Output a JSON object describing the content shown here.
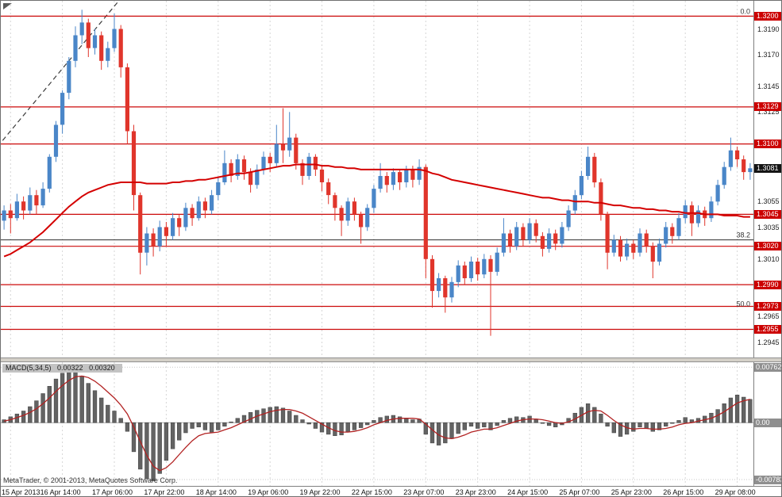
{
  "footer": {
    "copyright": "MetaTrader, © 2001-2013, MetaQuotes Software Corp."
  },
  "chart_data": {
    "type": "candlestick",
    "ylim": [
      1.2933,
      1.3212
    ],
    "price_ticks": [
      1.319,
      1.317,
      1.3145,
      1.3125,
      1.31,
      1.308,
      1.3055,
      1.3035,
      1.301,
      1.299,
      1.2965,
      1.2945
    ],
    "current_price": "1.3081",
    "levels": [
      {
        "price": 1.32,
        "label": "1.3200"
      },
      {
        "price": 1.3129,
        "label": "1.3129"
      },
      {
        "price": 1.31,
        "label": "1.3100"
      },
      {
        "price": 1.3045,
        "label": "1.3045"
      },
      {
        "price": 1.302,
        "label": "1.3020"
      },
      {
        "price": 1.299,
        "label": "1.2990"
      },
      {
        "price": 1.2973,
        "label": "1.2973"
      },
      {
        "price": 1.2955,
        "label": "1.2955"
      }
    ],
    "fib_levels": [
      {
        "label": "0.0",
        "price": 1.32,
        "line": false
      },
      {
        "label": "38.2",
        "price": 1.3025,
        "line": true
      },
      {
        "label": "50.0",
        "price": 1.2971,
        "line": false
      }
    ],
    "trendline": {
      "from_index": -1,
      "from_price": 1.3098,
      "to_index": 19,
      "to_price": 1.322
    },
    "time_labels": [
      "15 Apr 2013",
      "16 Apr 14:00",
      "17 Apr 06:00",
      "17 Apr 22:00",
      "18 Apr 14:00",
      "19 Apr 06:00",
      "19 Apr 22:00",
      "22 Apr 15:00",
      "23 Apr 07:00",
      "23 Apr 23:00",
      "24 Apr 15:00",
      "25 Apr 07:00",
      "25 Apr 23:00",
      "26 Apr 15:00",
      "29 Apr 08:00"
    ],
    "time_label_indices": [
      1,
      9,
      17,
      25,
      33,
      41,
      49,
      57,
      65,
      73,
      81,
      89,
      97,
      105,
      113
    ],
    "candles": [
      [
        1.304,
        1.3052,
        1.3033,
        1.3048
      ],
      [
        1.3048,
        1.3053,
        1.303,
        1.3042
      ],
      [
        1.3042,
        1.3061,
        1.304,
        1.3055
      ],
      [
        1.3055,
        1.3059,
        1.3041,
        1.3048
      ],
      [
        1.3048,
        1.3066,
        1.3045,
        1.306
      ],
      [
        1.306,
        1.3064,
        1.3045,
        1.3052
      ],
      [
        1.3052,
        1.307,
        1.305,
        1.3065
      ],
      [
        1.3065,
        1.3092,
        1.3062,
        1.309
      ],
      [
        1.309,
        1.3118,
        1.3086,
        1.3115
      ],
      [
        1.3115,
        1.3142,
        1.3108,
        1.314
      ],
      [
        1.314,
        1.3168,
        1.3135,
        1.3165
      ],
      [
        1.3165,
        1.3192,
        1.316,
        1.3185
      ],
      [
        1.3185,
        1.3205,
        1.3178,
        1.3195
      ],
      [
        1.3195,
        1.3198,
        1.3168,
        1.3175
      ],
      [
        1.3175,
        1.319,
        1.317,
        1.3185
      ],
      [
        1.3185,
        1.3188,
        1.3158,
        1.3165
      ],
      [
        1.3165,
        1.318,
        1.316,
        1.3175
      ],
      [
        1.3175,
        1.3202,
        1.3172,
        1.319
      ],
      [
        1.319,
        1.3193,
        1.3152,
        1.316
      ],
      [
        1.316,
        1.3163,
        1.31,
        1.311
      ],
      [
        1.311,
        1.3115,
        1.3048,
        1.306
      ],
      [
        1.306,
        1.3062,
        1.2998,
        1.3015
      ],
      [
        1.3015,
        1.3035,
        1.3005,
        1.303
      ],
      [
        1.303,
        1.3034,
        1.3012,
        1.302
      ],
      [
        1.302,
        1.304,
        1.3016,
        1.3035
      ],
      [
        1.3035,
        1.3039,
        1.302,
        1.3028
      ],
      [
        1.3028,
        1.3046,
        1.3025,
        1.3042
      ],
      [
        1.3042,
        1.3045,
        1.3028,
        1.3035
      ],
      [
        1.3035,
        1.3054,
        1.3032,
        1.305
      ],
      [
        1.305,
        1.3053,
        1.3036,
        1.3042
      ],
      [
        1.3042,
        1.3059,
        1.304,
        1.3055
      ],
      [
        1.3055,
        1.3058,
        1.3042,
        1.3048
      ],
      [
        1.3048,
        1.3064,
        1.3045,
        1.306
      ],
      [
        1.306,
        1.3074,
        1.3056,
        1.307
      ],
      [
        1.307,
        1.3095,
        1.3068,
        1.3085
      ],
      [
        1.3085,
        1.3088,
        1.307,
        1.3075
      ],
      [
        1.3075,
        1.3092,
        1.3072,
        1.3088
      ],
      [
        1.3088,
        1.3091,
        1.3072,
        1.3078
      ],
      [
        1.3078,
        1.3081,
        1.3062,
        1.3068
      ],
      [
        1.3068,
        1.3084,
        1.3065,
        1.308
      ],
      [
        1.308,
        1.3094,
        1.3076,
        1.309
      ],
      [
        1.309,
        1.3093,
        1.3078,
        1.3085
      ],
      [
        1.3085,
        1.3115,
        1.3082,
        1.31
      ],
      [
        1.31,
        1.3128,
        1.3085,
        1.3095
      ],
      [
        1.3095,
        1.3125,
        1.309,
        1.3105
      ],
      [
        1.3105,
        1.3108,
        1.308,
        1.3085
      ],
      [
        1.3085,
        1.3088,
        1.3068,
        1.3075
      ],
      [
        1.3075,
        1.3093,
        1.3072,
        1.309
      ],
      [
        1.309,
        1.3092,
        1.3075,
        1.308
      ],
      [
        1.308,
        1.3083,
        1.3063,
        1.307
      ],
      [
        1.307,
        1.3073,
        1.3053,
        1.306
      ],
      [
        1.306,
        1.3062,
        1.304,
        1.305
      ],
      [
        1.305,
        1.3052,
        1.3028,
        1.304
      ],
      [
        1.304,
        1.3058,
        1.3036,
        1.3055
      ],
      [
        1.3055,
        1.3058,
        1.304,
        1.3045
      ],
      [
        1.3045,
        1.3047,
        1.3022,
        1.3035
      ],
      [
        1.3035,
        1.3053,
        1.3032,
        1.305
      ],
      [
        1.305,
        1.3068,
        1.3046,
        1.3065
      ],
      [
        1.3065,
        1.3085,
        1.3062,
        1.3075
      ],
      [
        1.3075,
        1.3078,
        1.3062,
        1.3068
      ],
      [
        1.3068,
        1.3081,
        1.3064,
        1.3078
      ],
      [
        1.3078,
        1.308,
        1.3064,
        1.307
      ],
      [
        1.307,
        1.3083,
        1.3066,
        1.308
      ],
      [
        1.308,
        1.3083,
        1.3066,
        1.3072
      ],
      [
        1.3072,
        1.3088,
        1.3068,
        1.3082
      ],
      [
        1.3082,
        1.3084,
        1.2995,
        1.301
      ],
      [
        1.301,
        1.3013,
        1.2972,
        1.2985
      ],
      [
        1.2985,
        1.2999,
        1.298,
        1.2995
      ],
      [
        1.2995,
        1.2997,
        1.2968,
        1.298
      ],
      [
        1.298,
        1.2996,
        1.2976,
        1.2992
      ],
      [
        1.2992,
        1.3009,
        1.2988,
        1.3005
      ],
      [
        1.3005,
        1.3008,
        1.299,
        1.2995
      ],
      [
        1.2995,
        1.3012,
        1.2992,
        1.3008
      ],
      [
        1.3008,
        1.3011,
        1.2993,
        1.2998
      ],
      [
        1.2998,
        1.3014,
        1.2995,
        1.301
      ],
      [
        1.301,
        1.3013,
        1.295,
        1.3
      ],
      [
        1.3,
        1.3019,
        1.2997,
        1.3015
      ],
      [
        1.3015,
        1.3042,
        1.3012,
        1.303
      ],
      [
        1.303,
        1.3033,
        1.3015,
        1.302
      ],
      [
        1.302,
        1.3039,
        1.3017,
        1.3035
      ],
      [
        1.3035,
        1.3038,
        1.302,
        1.3025
      ],
      [
        1.3025,
        1.3042,
        1.3022,
        1.3038
      ],
      [
        1.3038,
        1.3041,
        1.3023,
        1.3028
      ],
      [
        1.3028,
        1.3031,
        1.3012,
        1.3018
      ],
      [
        1.3018,
        1.3034,
        1.3015,
        1.303
      ],
      [
        1.303,
        1.3033,
        1.3017,
        1.3022
      ],
      [
        1.3022,
        1.3039,
        1.3019,
        1.3035
      ],
      [
        1.3035,
        1.3052,
        1.3032,
        1.3048
      ],
      [
        1.3048,
        1.3064,
        1.3045,
        1.306
      ],
      [
        1.306,
        1.3079,
        1.3057,
        1.3075
      ],
      [
        1.3075,
        1.3098,
        1.3072,
        1.309
      ],
      [
        1.309,
        1.3093,
        1.3066,
        1.307
      ],
      [
        1.307,
        1.3073,
        1.304,
        1.3045
      ],
      [
        1.3045,
        1.3047,
        1.3002,
        1.3015
      ],
      [
        1.3015,
        1.3029,
        1.3012,
        1.3025
      ],
      [
        1.3025,
        1.3028,
        1.3008,
        1.3012
      ],
      [
        1.3012,
        1.3026,
        1.3009,
        1.3022
      ],
      [
        1.3022,
        1.3025,
        1.301,
        1.3015
      ],
      [
        1.3015,
        1.3034,
        1.3012,
        1.303
      ],
      [
        1.303,
        1.3033,
        1.3015,
        1.302
      ],
      [
        1.302,
        1.3023,
        1.2995,
        1.3008
      ],
      [
        1.3008,
        1.3026,
        1.3005,
        1.3022
      ],
      [
        1.3022,
        1.3039,
        1.3019,
        1.3035
      ],
      [
        1.3035,
        1.3038,
        1.3022,
        1.3028
      ],
      [
        1.3028,
        1.3046,
        1.3025,
        1.3042
      ],
      [
        1.3042,
        1.3056,
        1.3038,
        1.3052
      ],
      [
        1.3052,
        1.3055,
        1.3028,
        1.3038
      ],
      [
        1.3038,
        1.3052,
        1.3035,
        1.3048
      ],
      [
        1.3048,
        1.3051,
        1.3036,
        1.3042
      ],
      [
        1.3042,
        1.3059,
        1.3039,
        1.3055
      ],
      [
        1.3055,
        1.3072,
        1.3052,
        1.3068
      ],
      [
        1.3068,
        1.3086,
        1.3065,
        1.3082
      ],
      [
        1.3082,
        1.3105,
        1.3079,
        1.3095
      ],
      [
        1.3095,
        1.3098,
        1.3082,
        1.3088
      ],
      [
        1.3088,
        1.3091,
        1.3072,
        1.3078
      ],
      [
        1.3078,
        1.3085,
        1.3072,
        1.3081
      ]
    ],
    "ma_line": [
      1.3012,
      1.3014,
      1.3017,
      1.302,
      1.3023,
      1.3027,
      1.3031,
      1.3036,
      1.3041,
      1.3046,
      1.3051,
      1.3055,
      1.3059,
      1.3062,
      1.3064,
      1.3066,
      1.3068,
      1.3069,
      1.307,
      1.307,
      1.307,
      1.307,
      1.3069,
      1.3069,
      1.3069,
      1.3069,
      1.307,
      1.307,
      1.3071,
      1.3071,
      1.3072,
      1.3072,
      1.3073,
      1.3074,
      1.3075,
      1.3076,
      1.3077,
      1.3077,
      1.3078,
      1.3079,
      1.308,
      1.3081,
      1.3082,
      1.3083,
      1.3083,
      1.3084,
      1.3084,
      1.3084,
      1.3084,
      1.3083,
      1.3083,
      1.3082,
      1.3082,
      1.3081,
      1.3081,
      1.308,
      1.308,
      1.308,
      1.308,
      1.308,
      1.308,
      1.308,
      1.308,
      1.308,
      1.308,
      1.3079,
      1.3077,
      1.3076,
      1.3074,
      1.3072,
      1.3071,
      1.307,
      1.3069,
      1.3068,
      1.3067,
      1.3066,
      1.3065,
      1.3064,
      1.3063,
      1.3062,
      1.3061,
      1.306,
      1.3059,
      1.3058,
      1.3058,
      1.3057,
      1.3056,
      1.3056,
      1.3055,
      1.3055,
      1.3055,
      1.3054,
      1.3054,
      1.3053,
      1.3052,
      1.3052,
      1.3051,
      1.305,
      1.305,
      1.3049,
      1.3049,
      1.3048,
      1.3048,
      1.3047,
      1.3047,
      1.3046,
      1.3046,
      1.3046,
      1.3045,
      1.3045,
      1.3045,
      1.3044,
      1.3044,
      1.3044,
      1.3043,
      1.3043
    ],
    "macd": {
      "title": "MACD(5,34,5)",
      "value_main": "0.00322",
      "value_signal": "0.00320",
      "axis_max": 0.00762,
      "axis_min": -0.00783,
      "axis_max_label": "0.00762",
      "axis_zero_label": "0.00",
      "axis_min_label": "-0.00783",
      "ylim": [
        -0.0087,
        0.0083
      ],
      "histogram": [
        0.0004,
        0.0008,
        0.0012,
        0.0016,
        0.0022,
        0.003,
        0.004,
        0.005,
        0.006,
        0.0068,
        0.0074,
        0.0072,
        0.0064,
        0.0054,
        0.0044,
        0.0034,
        0.0024,
        0.0016,
        0.0006,
        -0.0012,
        -0.004,
        -0.0064,
        -0.0077,
        -0.008,
        -0.007,
        -0.0052,
        -0.0036,
        -0.0024,
        -0.0014,
        -0.0008,
        -0.0006,
        -0.001,
        -0.0013,
        -0.001,
        -0.0005,
        0.0001,
        0.0006,
        0.001,
        0.0014,
        0.0017,
        0.0019,
        0.0021,
        0.0022,
        0.002,
        0.0016,
        0.001,
        0.0004,
        -0.0002,
        -0.0008,
        -0.0013,
        -0.0016,
        -0.0018,
        -0.0017,
        -0.0013,
        -0.001,
        -0.0007,
        -0.0003,
        0.0003,
        0.0007,
        0.0009,
        0.001,
        0.0008,
        0.0006,
        0.0004,
        0.0005,
        -0.0016,
        -0.0028,
        -0.0031,
        -0.0028,
        -0.0022,
        -0.0015,
        -0.001,
        -0.0005,
        -0.0008,
        -0.0006,
        -0.001,
        -0.0004,
        0.0003,
        0.0006,
        0.0008,
        0.0007,
        0.0009,
        0.0005,
        0.0,
        -0.0004,
        -0.0006,
        -0.0003,
        0.0006,
        0.0013,
        0.0021,
        0.0026,
        0.0021,
        0.0012,
        -0.0005,
        -0.0014,
        -0.0019,
        -0.0016,
        -0.0012,
        -0.0006,
        -0.0008,
        -0.0012,
        -0.001,
        -0.0005,
        -0.0001,
        0.0003,
        0.0007,
        0.0004,
        0.0006,
        0.0009,
        0.0013,
        0.0018,
        0.0026,
        0.0034,
        0.0038,
        0.0035,
        0.0032
      ],
      "signal": [
        0.0002,
        0.0004,
        0.0007,
        0.001,
        0.0014,
        0.0019,
        0.0026,
        0.0034,
        0.0043,
        0.0051,
        0.0058,
        0.0063,
        0.0064,
        0.0062,
        0.0057,
        0.005,
        0.0042,
        0.0034,
        0.0024,
        0.0012,
        -0.0006,
        -0.0026,
        -0.0045,
        -0.006,
        -0.0066,
        -0.0062,
        -0.0054,
        -0.0044,
        -0.0034,
        -0.0025,
        -0.0018,
        -0.0015,
        -0.0014,
        -0.0013,
        -0.001,
        -0.0007,
        -0.0003,
        0.0001,
        0.0005,
        0.0009,
        0.0012,
        0.0015,
        0.0017,
        0.0018,
        0.0018,
        0.0016,
        0.0013,
        0.0008,
        0.0003,
        -0.0002,
        -0.0007,
        -0.0011,
        -0.0013,
        -0.0013,
        -0.0012,
        -0.001,
        -0.0007,
        -0.0003,
        0.0,
        0.0003,
        0.0005,
        0.0006,
        0.0006,
        0.0006,
        0.0005,
        -0.0002,
        -0.001,
        -0.0017,
        -0.0021,
        -0.0022,
        -0.002,
        -0.0017,
        -0.0013,
        -0.0011,
        -0.0009,
        -0.0009,
        -0.0007,
        -0.0004,
        -0.0001,
        0.0002,
        0.0004,
        0.0005,
        0.0005,
        0.0004,
        0.0002,
        0.0,
        -0.0001,
        0.0001,
        0.0005,
        0.001,
        0.0015,
        0.0017,
        0.0016,
        0.001,
        0.0003,
        -0.0003,
        -0.0007,
        -0.0009,
        -0.0008,
        -0.0008,
        -0.0009,
        -0.0009,
        -0.0008,
        -0.0006,
        -0.0003,
        -0.0001,
        0.0,
        0.0002,
        0.0004,
        0.0006,
        0.001,
        0.0015,
        0.0021,
        0.0027,
        0.003,
        0.0032
      ]
    },
    "colors": {
      "up": "#4a86c8",
      "down": "#e0352b",
      "ma": "#d40000",
      "level": "#cc0a0a",
      "histogram": "#636363",
      "signal": "#b22222",
      "grid": "#d6d6d6"
    }
  }
}
